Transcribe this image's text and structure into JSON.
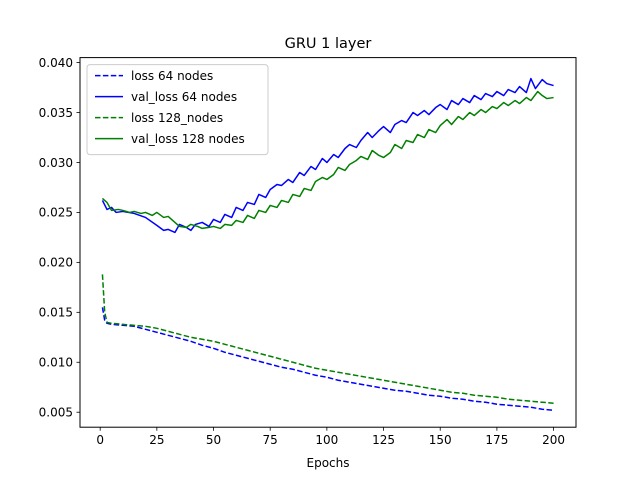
{
  "chart_data": {
    "type": "line",
    "title": "GRU 1 layer",
    "xlabel": "Epochs",
    "ylabel": "",
    "xlim": [
      -8.9,
      209.9
    ],
    "ylim": [
      0.0035,
      0.0405
    ],
    "x_ticks": [
      "0",
      "25",
      "50",
      "75",
      "100",
      "125",
      "150",
      "175",
      "200"
    ],
    "x_tick_values": [
      0,
      25,
      50,
      75,
      100,
      125,
      150,
      175,
      200
    ],
    "y_ticks": [
      "0.005",
      "0.010",
      "0.015",
      "0.020",
      "0.025",
      "0.030",
      "0.035",
      "0.040"
    ],
    "y_tick_values": [
      0.005,
      0.01,
      0.015,
      0.02,
      0.025,
      0.03,
      0.035,
      0.04
    ],
    "grid": false,
    "legend_position": "upper-left",
    "series": [
      {
        "name": "loss 64 nodes",
        "color": "#0000ff",
        "dash": "dashed",
        "points": [
          [
            1,
            0.0155
          ],
          [
            2,
            0.0142
          ],
          [
            3,
            0.0139
          ],
          [
            5,
            0.0138
          ],
          [
            10,
            0.0137
          ],
          [
            15,
            0.0136
          ],
          [
            20,
            0.0133
          ],
          [
            25,
            0.013
          ],
          [
            30,
            0.0127
          ],
          [
            35,
            0.0124
          ],
          [
            40,
            0.0121
          ],
          [
            45,
            0.0117
          ],
          [
            50,
            0.0114
          ],
          [
            55,
            0.011
          ],
          [
            60,
            0.0107
          ],
          [
            65,
            0.0104
          ],
          [
            70,
            0.0101
          ],
          [
            75,
            0.0098
          ],
          [
            80,
            0.0095
          ],
          [
            85,
            0.0093
          ],
          [
            90,
            0.009
          ],
          [
            95,
            0.0087
          ],
          [
            100,
            0.0085
          ],
          [
            105,
            0.0082
          ],
          [
            110,
            0.008
          ],
          [
            115,
            0.0078
          ],
          [
            120,
            0.0076
          ],
          [
            125,
            0.0074
          ],
          [
            130,
            0.0072
          ],
          [
            135,
            0.0071
          ],
          [
            140,
            0.0069
          ],
          [
            145,
            0.0067
          ],
          [
            150,
            0.0066
          ],
          [
            155,
            0.0064
          ],
          [
            160,
            0.0063
          ],
          [
            165,
            0.0061
          ],
          [
            170,
            0.006
          ],
          [
            175,
            0.0058
          ],
          [
            180,
            0.0057
          ],
          [
            185,
            0.0056
          ],
          [
            190,
            0.0055
          ],
          [
            195,
            0.0053
          ],
          [
            200,
            0.0052
          ]
        ]
      },
      {
        "name": "val_loss 64 nodes",
        "color": "#0000ff",
        "dash": "solid",
        "points": [
          [
            1,
            0.0262
          ],
          [
            3,
            0.0253
          ],
          [
            5,
            0.0255
          ],
          [
            7,
            0.025
          ],
          [
            10,
            0.0251
          ],
          [
            15,
            0.0249
          ],
          [
            20,
            0.0245
          ],
          [
            25,
            0.0237
          ],
          [
            28,
            0.0232
          ],
          [
            30,
            0.0233
          ],
          [
            33,
            0.023
          ],
          [
            35,
            0.0238
          ],
          [
            38,
            0.0235
          ],
          [
            40,
            0.0232
          ],
          [
            42,
            0.0238
          ],
          [
            45,
            0.024
          ],
          [
            48,
            0.0236
          ],
          [
            50,
            0.0243
          ],
          [
            53,
            0.024
          ],
          [
            55,
            0.0248
          ],
          [
            58,
            0.0245
          ],
          [
            60,
            0.0255
          ],
          [
            63,
            0.0252
          ],
          [
            65,
            0.026
          ],
          [
            68,
            0.0258
          ],
          [
            70,
            0.0268
          ],
          [
            73,
            0.0265
          ],
          [
            75,
            0.0273
          ],
          [
            78,
            0.0278
          ],
          [
            80,
            0.0277
          ],
          [
            83,
            0.0283
          ],
          [
            85,
            0.028
          ],
          [
            88,
            0.029
          ],
          [
            90,
            0.0287
          ],
          [
            93,
            0.0296
          ],
          [
            95,
            0.0293
          ],
          [
            98,
            0.0304
          ],
          [
            100,
            0.03
          ],
          [
            103,
            0.0308
          ],
          [
            105,
            0.0305
          ],
          [
            108,
            0.0314
          ],
          [
            110,
            0.0318
          ],
          [
            113,
            0.0315
          ],
          [
            115,
            0.0322
          ],
          [
            118,
            0.033
          ],
          [
            120,
            0.0325
          ],
          [
            123,
            0.0332
          ],
          [
            125,
            0.0336
          ],
          [
            128,
            0.033
          ],
          [
            130,
            0.0338
          ],
          [
            133,
            0.0342
          ],
          [
            135,
            0.034
          ],
          [
            138,
            0.035
          ],
          [
            140,
            0.0347
          ],
          [
            143,
            0.0352
          ],
          [
            145,
            0.0348
          ],
          [
            148,
            0.0355
          ],
          [
            150,
            0.0358
          ],
          [
            153,
            0.0353
          ],
          [
            155,
            0.0362
          ],
          [
            158,
            0.0358
          ],
          [
            160,
            0.0364
          ],
          [
            163,
            0.036
          ],
          [
            165,
            0.0367
          ],
          [
            168,
            0.0363
          ],
          [
            170,
            0.0369
          ],
          [
            173,
            0.0366
          ],
          [
            175,
            0.0371
          ],
          [
            178,
            0.0367
          ],
          [
            180,
            0.0373
          ],
          [
            183,
            0.037
          ],
          [
            185,
            0.0376
          ],
          [
            188,
            0.037
          ],
          [
            190,
            0.0384
          ],
          [
            192,
            0.0374
          ],
          [
            195,
            0.0383
          ],
          [
            197,
            0.0379
          ],
          [
            200,
            0.0377
          ]
        ]
      },
      {
        "name": "loss 128_nodes",
        "color": "#008000",
        "dash": "dashed",
        "points": [
          [
            1,
            0.0188
          ],
          [
            2,
            0.015
          ],
          [
            3,
            0.014
          ],
          [
            5,
            0.0139
          ],
          [
            10,
            0.0138
          ],
          [
            15,
            0.0137
          ],
          [
            20,
            0.0136
          ],
          [
            25,
            0.0134
          ],
          [
            30,
            0.0131
          ],
          [
            35,
            0.0128
          ],
          [
            40,
            0.0125
          ],
          [
            45,
            0.0123
          ],
          [
            50,
            0.0121
          ],
          [
            55,
            0.0118
          ],
          [
            60,
            0.0115
          ],
          [
            65,
            0.0112
          ],
          [
            70,
            0.0109
          ],
          [
            75,
            0.0106
          ],
          [
            80,
            0.0103
          ],
          [
            85,
            0.01
          ],
          [
            90,
            0.0097
          ],
          [
            95,
            0.0094
          ],
          [
            100,
            0.0092
          ],
          [
            105,
            0.009
          ],
          [
            110,
            0.0088
          ],
          [
            115,
            0.0086
          ],
          [
            120,
            0.0084
          ],
          [
            125,
            0.0082
          ],
          [
            130,
            0.008
          ],
          [
            135,
            0.0078
          ],
          [
            140,
            0.0076
          ],
          [
            145,
            0.0074
          ],
          [
            150,
            0.0072
          ],
          [
            155,
            0.007
          ],
          [
            160,
            0.0069
          ],
          [
            165,
            0.0067
          ],
          [
            170,
            0.0066
          ],
          [
            175,
            0.0065
          ],
          [
            180,
            0.0063
          ],
          [
            185,
            0.0062
          ],
          [
            190,
            0.0061
          ],
          [
            195,
            0.006
          ],
          [
            200,
            0.0059
          ]
        ]
      },
      {
        "name": "val_loss 128 nodes",
        "color": "#008000",
        "dash": "solid",
        "points": [
          [
            1,
            0.0264
          ],
          [
            3,
            0.026
          ],
          [
            5,
            0.0252
          ],
          [
            8,
            0.0253
          ],
          [
            10,
            0.0252
          ],
          [
            13,
            0.025
          ],
          [
            15,
            0.0251
          ],
          [
            18,
            0.0249
          ],
          [
            20,
            0.025
          ],
          [
            23,
            0.0247
          ],
          [
            25,
            0.025
          ],
          [
            28,
            0.0245
          ],
          [
            30,
            0.0246
          ],
          [
            33,
            0.024
          ],
          [
            35,
            0.0236
          ],
          [
            38,
            0.0235
          ],
          [
            40,
            0.0238
          ],
          [
            43,
            0.0236
          ],
          [
            45,
            0.0234
          ],
          [
            48,
            0.0235
          ],
          [
            50,
            0.0236
          ],
          [
            53,
            0.0234
          ],
          [
            55,
            0.0238
          ],
          [
            58,
            0.0237
          ],
          [
            60,
            0.0242
          ],
          [
            63,
            0.024
          ],
          [
            65,
            0.0247
          ],
          [
            68,
            0.0244
          ],
          [
            70,
            0.0252
          ],
          [
            73,
            0.025
          ],
          [
            75,
            0.0257
          ],
          [
            78,
            0.0255
          ],
          [
            80,
            0.0262
          ],
          [
            83,
            0.026
          ],
          [
            85,
            0.0268
          ],
          [
            88,
            0.0266
          ],
          [
            90,
            0.0274
          ],
          [
            93,
            0.0272
          ],
          [
            95,
            0.0281
          ],
          [
            98,
            0.0285
          ],
          [
            100,
            0.0283
          ],
          [
            103,
            0.0288
          ],
          [
            105,
            0.0295
          ],
          [
            108,
            0.0292
          ],
          [
            110,
            0.0298
          ],
          [
            113,
            0.0302
          ],
          [
            115,
            0.0306
          ],
          [
            118,
            0.0303
          ],
          [
            120,
            0.0312
          ],
          [
            123,
            0.0307
          ],
          [
            125,
            0.0305
          ],
          [
            128,
            0.031
          ],
          [
            130,
            0.0318
          ],
          [
            133,
            0.0314
          ],
          [
            135,
            0.0322
          ],
          [
            138,
            0.032
          ],
          [
            140,
            0.0328
          ],
          [
            143,
            0.0325
          ],
          [
            145,
            0.0333
          ],
          [
            148,
            0.033
          ],
          [
            150,
            0.0337
          ],
          [
            153,
            0.0343
          ],
          [
            155,
            0.0338
          ],
          [
            158,
            0.0346
          ],
          [
            160,
            0.0343
          ],
          [
            163,
            0.035
          ],
          [
            165,
            0.0347
          ],
          [
            168,
            0.0353
          ],
          [
            170,
            0.035
          ],
          [
            173,
            0.0356
          ],
          [
            175,
            0.0354
          ],
          [
            178,
            0.036
          ],
          [
            180,
            0.0357
          ],
          [
            183,
            0.0362
          ],
          [
            185,
            0.0359
          ],
          [
            188,
            0.0365
          ],
          [
            190,
            0.0362
          ],
          [
            193,
            0.0371
          ],
          [
            195,
            0.0367
          ],
          [
            197,
            0.0364
          ],
          [
            200,
            0.0365
          ]
        ]
      }
    ]
  }
}
